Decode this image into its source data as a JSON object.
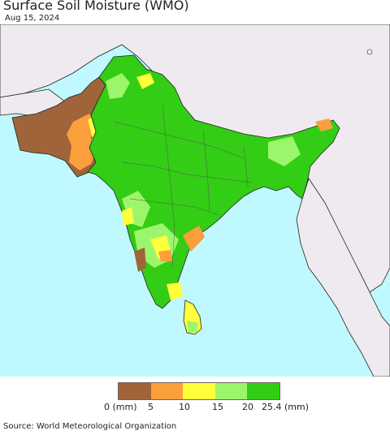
{
  "header": {
    "title": "Surface Soil Moisture (WMO)",
    "date": "Aug 15, 2024"
  },
  "legend": {
    "labels": [
      "0 (mm)",
      "5",
      "10",
      "15",
      "20",
      "25.4 (mm)"
    ],
    "colors": [
      "#a0643a",
      "#fa9f3c",
      "#ffff3c",
      "#9cf66c",
      "#32cd14"
    ]
  },
  "footer": {
    "source": "Source: World Meteorological Organization"
  },
  "colors": {
    "ocean": "#bff9ff",
    "land_outside": "#efeaf0",
    "border": "#222222"
  }
}
